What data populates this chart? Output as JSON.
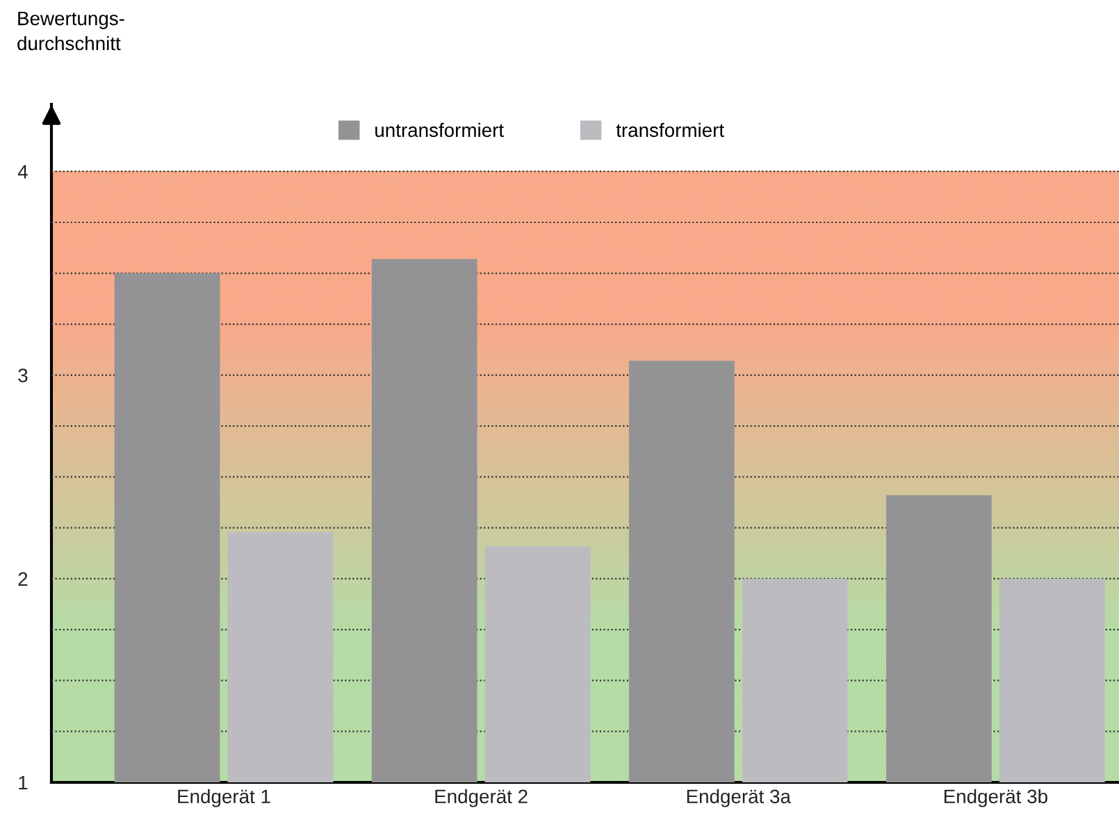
{
  "chart_data": {
    "type": "bar",
    "ylabel": "Bewertungs-\ndurchschnitt",
    "categories": [
      "Endgerät 1",
      "Endgerät 2",
      "Endgerät 3a",
      "Endgerät 3b"
    ],
    "series": [
      {
        "name": "untransformiert",
        "color": "#939396",
        "values": [
          3.5,
          3.57,
          3.07,
          2.41
        ]
      },
      {
        "name": "transformiert",
        "color": "#bcbcc0",
        "values": [
          2.23,
          2.16,
          2.0,
          2.0
        ]
      }
    ],
    "ylim": [
      1,
      4.33
    ],
    "yticks": [
      1,
      {
        "value": 1.25,
        "label": null
      },
      {
        "value": 1.5,
        "label": null
      },
      {
        "value": 1.75,
        "label": null
      },
      2,
      {
        "value": 2.25,
        "label": null
      },
      {
        "value": 2.5,
        "label": null
      },
      {
        "value": 2.75,
        "label": null
      },
      3,
      {
        "value": 3.25,
        "label": null
      },
      {
        "value": 3.5,
        "label": null
      },
      {
        "value": 3.75,
        "label": null
      },
      4
    ],
    "grid": "y",
    "legend": "top"
  }
}
